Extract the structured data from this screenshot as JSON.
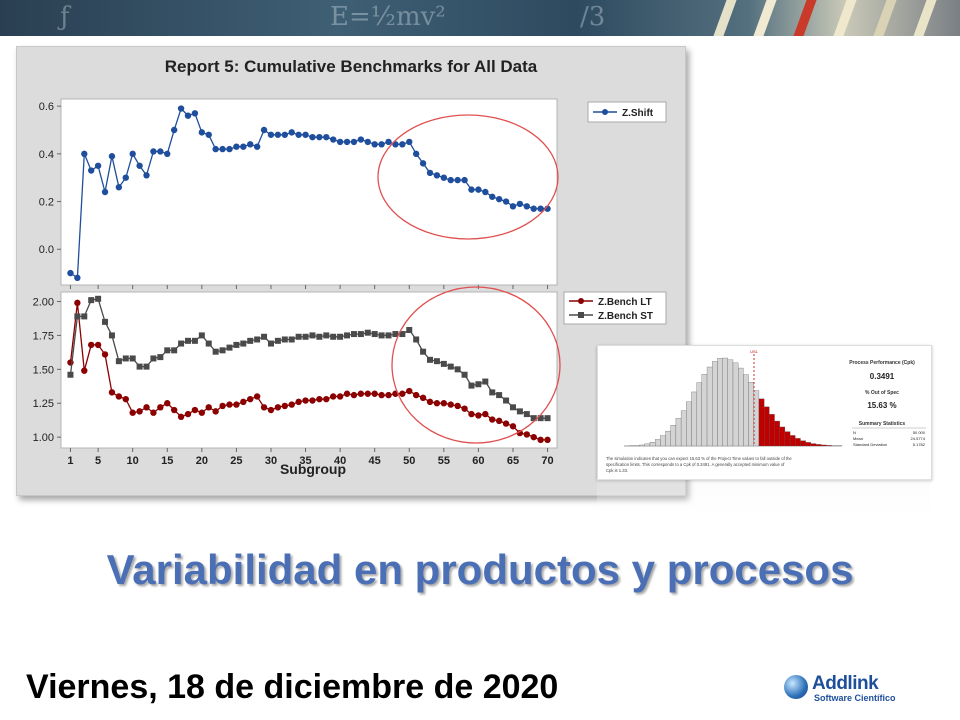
{
  "report": {
    "title": "Report 5: Cumulative Benchmarks for All Data"
  },
  "inset": {
    "cpk_title": "Process Performance (Cpk)",
    "cpk_value": "0.3491",
    "oos_title": "% Out of Spec",
    "oos_value": "15.63 %",
    "summary_title": "Summary Statistics",
    "stats": [
      {
        "label": "N",
        "value": "50 000"
      },
      {
        "label": "Mean",
        "value": "24.5774"
      },
      {
        "label": "Standard Deviation",
        "value": "5.1782"
      }
    ],
    "usl_label": "USL",
    "note_line1": "The simulation indicates that you can expect 15.63 % of the Project Time values to fall outside of the",
    "note_line2": "specification limits. This corresponds to a Cpk of 0.3491. A generally accepted minimum value of",
    "note_line3": "Cpk is 1.33."
  },
  "slide": {
    "heading": "Variabilidad en productos y procesos",
    "date": "Viernes, 18 de diciembre de 2020"
  },
  "logo": {
    "name": "Addlink",
    "sub": "Software Científico"
  },
  "colors": {
    "zshift": "#1f4e9c",
    "lt": "#8b0000",
    "st": "#4a4a4a",
    "circle": "#e05050",
    "heading": "#4a6fb5",
    "hist_gray": "#d4d4d4",
    "hist_red": "#c00000"
  },
  "chart_data": [
    {
      "type": "line",
      "x": [
        1,
        2,
        3,
        4,
        5,
        6,
        7,
        8,
        9,
        10,
        11,
        12,
        13,
        14,
        15,
        16,
        17,
        18,
        19,
        20,
        21,
        22,
        23,
        24,
        25,
        26,
        27,
        28,
        29,
        30,
        31,
        32,
        33,
        34,
        35,
        36,
        37,
        38,
        39,
        40,
        41,
        42,
        43,
        44,
        45,
        46,
        47,
        48,
        49,
        50,
        51,
        52,
        53,
        54,
        55,
        56,
        57,
        58,
        59,
        60,
        61,
        62,
        63,
        64,
        65,
        66,
        67,
        68,
        69,
        70
      ],
      "series": [
        {
          "name": "Z.Shift",
          "values": [
            -0.1,
            -0.12,
            0.4,
            0.33,
            0.35,
            0.24,
            0.39,
            0.26,
            0.3,
            0.4,
            0.35,
            0.31,
            0.41,
            0.41,
            0.4,
            0.5,
            0.59,
            0.56,
            0.57,
            0.49,
            0.48,
            0.42,
            0.42,
            0.42,
            0.43,
            0.43,
            0.44,
            0.43,
            0.5,
            0.48,
            0.48,
            0.48,
            0.49,
            0.48,
            0.48,
            0.47,
            0.47,
            0.47,
            0.46,
            0.45,
            0.45,
            0.45,
            0.46,
            0.45,
            0.44,
            0.44,
            0.45,
            0.44,
            0.44,
            0.45,
            0.4,
            0.36,
            0.32,
            0.31,
            0.3,
            0.29,
            0.29,
            0.29,
            0.25,
            0.25,
            0.24,
            0.22,
            0.21,
            0.2,
            0.18,
            0.19,
            0.18,
            0.17,
            0.17,
            0.17
          ]
        }
      ],
      "xticks": [
        1,
        5,
        10,
        15,
        20,
        25,
        30,
        35,
        40,
        45,
        50,
        55,
        60,
        65,
        70
      ],
      "yticks": [
        0.0,
        0.2,
        0.4,
        0.6
      ],
      "ylim": [
        -0.15,
        0.63
      ],
      "legend": "top-right"
    },
    {
      "type": "line",
      "x": [
        1,
        2,
        3,
        4,
        5,
        6,
        7,
        8,
        9,
        10,
        11,
        12,
        13,
        14,
        15,
        16,
        17,
        18,
        19,
        20,
        21,
        22,
        23,
        24,
        25,
        26,
        27,
        28,
        29,
        30,
        31,
        32,
        33,
        34,
        35,
        36,
        37,
        38,
        39,
        40,
        41,
        42,
        43,
        44,
        45,
        46,
        47,
        48,
        49,
        50,
        51,
        52,
        53,
        54,
        55,
        56,
        57,
        58,
        59,
        60,
        61,
        62,
        63,
        64,
        65,
        66,
        67,
        68,
        69,
        70
      ],
      "series": [
        {
          "name": "Z.Bench LT",
          "values": [
            1.55,
            1.99,
            1.49,
            1.68,
            1.68,
            1.61,
            1.33,
            1.3,
            1.28,
            1.18,
            1.19,
            1.22,
            1.18,
            1.22,
            1.25,
            1.2,
            1.15,
            1.17,
            1.2,
            1.18,
            1.22,
            1.19,
            1.23,
            1.24,
            1.24,
            1.26,
            1.28,
            1.3,
            1.22,
            1.2,
            1.22,
            1.23,
            1.24,
            1.26,
            1.27,
            1.27,
            1.28,
            1.28,
            1.3,
            1.3,
            1.32,
            1.31,
            1.32,
            1.32,
            1.32,
            1.31,
            1.31,
            1.32,
            1.32,
            1.34,
            1.31,
            1.29,
            1.26,
            1.25,
            1.25,
            1.24,
            1.23,
            1.21,
            1.17,
            1.16,
            1.17,
            1.13,
            1.12,
            1.1,
            1.08,
            1.03,
            1.02,
            1.0,
            0.98,
            0.98
          ]
        },
        {
          "name": "Z.Bench ST",
          "values": [
            1.46,
            1.89,
            1.89,
            2.01,
            2.02,
            1.85,
            1.75,
            1.56,
            1.58,
            1.58,
            1.52,
            1.52,
            1.58,
            1.59,
            1.64,
            1.64,
            1.69,
            1.71,
            1.71,
            1.75,
            1.69,
            1.63,
            1.64,
            1.66,
            1.68,
            1.69,
            1.71,
            1.72,
            1.74,
            1.69,
            1.71,
            1.72,
            1.72,
            1.74,
            1.74,
            1.75,
            1.74,
            1.75,
            1.74,
            1.74,
            1.75,
            1.76,
            1.76,
            1.77,
            1.76,
            1.75,
            1.75,
            1.76,
            1.76,
            1.79,
            1.72,
            1.63,
            1.57,
            1.56,
            1.54,
            1.52,
            1.5,
            1.46,
            1.38,
            1.39,
            1.41,
            1.33,
            1.31,
            1.27,
            1.22,
            1.19,
            1.17,
            1.14,
            1.14,
            1.14
          ]
        }
      ],
      "xticks": [
        1,
        5,
        10,
        15,
        20,
        25,
        30,
        35,
        40,
        45,
        50,
        55,
        60,
        65,
        70
      ],
      "yticks": [
        1.0,
        1.25,
        1.5,
        1.75,
        2.0
      ],
      "ylim": [
        0.92,
        2.07
      ],
      "xlabel": "Subgroup",
      "legend": "top-right"
    },
    {
      "type": "bar",
      "values": [
        2,
        5,
        12,
        30,
        62,
        110,
        190,
        300,
        430,
        600,
        800,
        1020,
        1280,
        1560,
        1830,
        2070,
        2280,
        2440,
        2530,
        2540,
        2490,
        2400,
        2250,
        2060,
        1840,
        1600,
        1360,
        1130,
        915,
        720,
        550,
        415,
        305,
        220,
        152,
        104,
        70,
        46,
        30,
        18,
        10,
        6
      ]
    }
  ]
}
